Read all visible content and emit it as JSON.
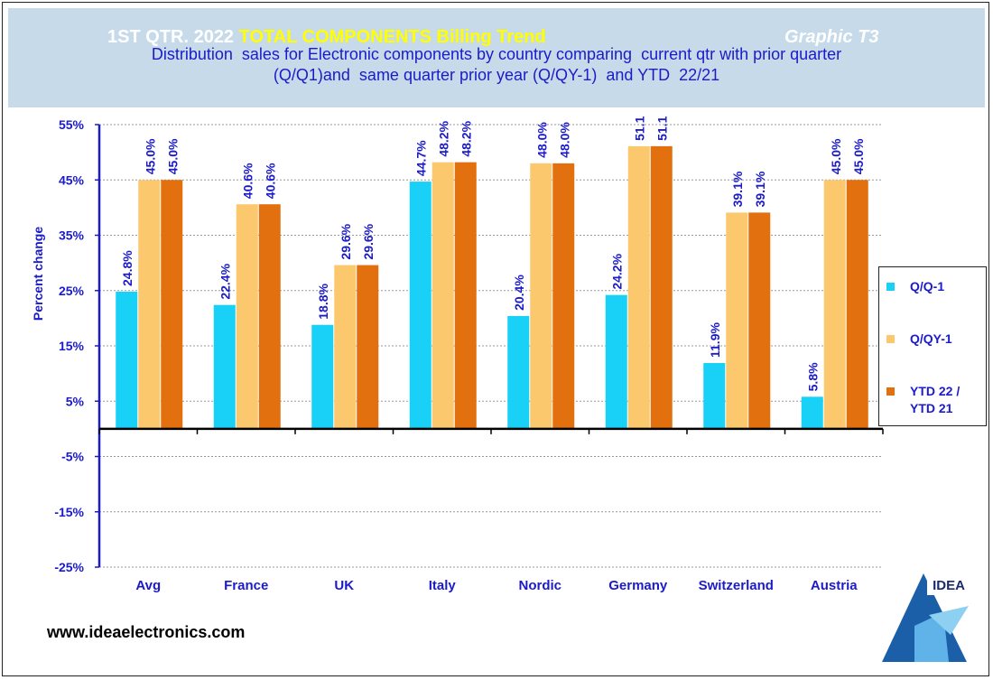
{
  "header": {
    "title_prefix": "1ST QTR. 2022",
    "title_highlight": "TOTAL COMPONENTS  Billing Trend",
    "graphic_label": "Graphic  T3",
    "subtitle_line1": "Distribution  sales for Electronic components by country comparing  current qtr with prior quarter",
    "subtitle_line2": "(Q/Q1)and  same quarter prior year (Q/QY-1)  and YTD  22/21"
  },
  "chart_data": {
    "type": "bar",
    "categories": [
      "Avg",
      "France",
      "UK",
      "Italy",
      "Nordic",
      "Germany",
      "Switzerland",
      "Austria"
    ],
    "series": [
      {
        "name": "Q/Q-1",
        "color": "#19d1f7",
        "values": [
          24.8,
          22.4,
          18.8,
          44.7,
          20.4,
          24.2,
          11.9,
          5.8
        ],
        "labels": [
          "24.8%",
          "22.4%",
          "18.8%",
          "44.7%",
          "20.4%",
          "24.2%",
          "11.9%",
          "5.8%"
        ]
      },
      {
        "name": "Q/QY-1",
        "color": "#fcc86e",
        "values": [
          45.0,
          40.6,
          29.6,
          48.2,
          48.0,
          51.1,
          39.1,
          45.0
        ],
        "labels": [
          "45.0%",
          "40.6%",
          "29.6%",
          "48.2%",
          "48.0%",
          "51.1",
          "39.1%",
          "45.0%"
        ]
      },
      {
        "name": "YTD 22 / YTD 21",
        "color": "#e3700f",
        "values": [
          45.0,
          40.6,
          29.6,
          48.2,
          48.0,
          51.1,
          39.1,
          45.0
        ],
        "labels": [
          "45.0%",
          "40.6%",
          "29.6%",
          "48.2%",
          "48.0%",
          "51.1",
          "39.1%",
          "45.0%"
        ]
      }
    ],
    "ylabel": "Percent change",
    "ylim": [
      -25,
      55
    ],
    "yticks": [
      55,
      45,
      35,
      25,
      15,
      5,
      -5,
      -15,
      -25
    ],
    "ytick_labels": [
      "55%",
      "45%",
      "35%",
      "25%",
      "15%",
      "5%",
      "-5%",
      "-15%",
      "-25%"
    ],
    "grid": true
  },
  "legend": {
    "items": [
      {
        "line1": "Q/Q-1",
        "line2": ""
      },
      {
        "line1": "Q/QY-1",
        "line2": ""
      },
      {
        "line1": "YTD 22 /",
        "line2": "YTD 21"
      }
    ]
  },
  "footer": {
    "url": "www.ideaelectronics.com"
  },
  "logo": {
    "text": "IDEA"
  },
  "colors": {
    "text_blue": "#1b1bc9",
    "header_bg": "#c6daea",
    "title_yellow": "#ffff00"
  }
}
